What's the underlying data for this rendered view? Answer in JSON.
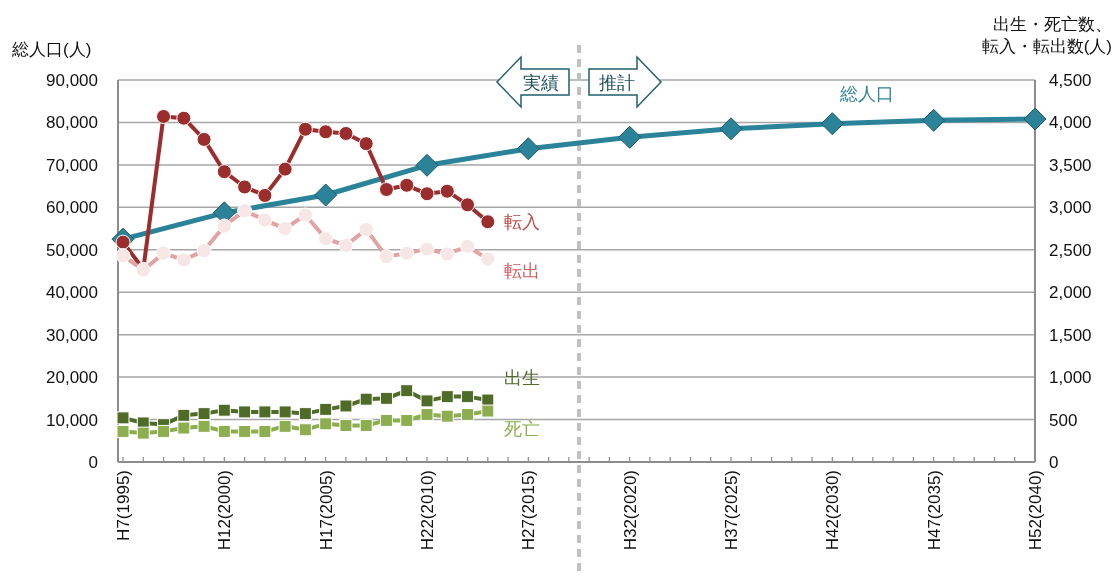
{
  "chart_data": {
    "type": "line",
    "ylabel": "総人口(人)",
    "y2label": "出生・死亡数、転入・転出数(人)",
    "categories": [
      "H7(1995)",
      null,
      null,
      null,
      null,
      "H12(2000)",
      null,
      null,
      null,
      null,
      "H17(2005)",
      null,
      null,
      null,
      null,
      "H22(2010)",
      null,
      null,
      null,
      null,
      "H27(2015)",
      null,
      null,
      null,
      null,
      "H32(2020)",
      null,
      null,
      null,
      null,
      "H37(2025)",
      null,
      null,
      null,
      null,
      "H42(2030)",
      null,
      null,
      null,
      null,
      "H47(2035)",
      null,
      null,
      null,
      null,
      "H52(2040)"
    ],
    "ylim": [
      0,
      90000
    ],
    "yticks": [
      {
        "value": 0,
        "label": "0"
      },
      {
        "value": 10000,
        "label": "10,000"
      },
      {
        "value": 20000,
        "label": "20,000"
      },
      {
        "value": 30000,
        "label": "30,000"
      },
      {
        "value": 40000,
        "label": "40,000"
      },
      {
        "value": 50000,
        "label": "50,000"
      },
      {
        "value": 60000,
        "label": "60,000"
      },
      {
        "value": 70000,
        "label": "70,000"
      },
      {
        "value": 80000,
        "label": "80,000"
      },
      {
        "value": 90000,
        "label": "90,000"
      }
    ],
    "y2lim": [
      0,
      4500
    ],
    "y2ticks": [
      {
        "value": 0,
        "label": "0"
      },
      {
        "value": 500,
        "label": "500"
      },
      {
        "value": 1000,
        "label": "1,000"
      },
      {
        "value": 1500,
        "label": "1,500"
      },
      {
        "value": 2000,
        "label": "2,000"
      },
      {
        "value": 2500,
        "label": "2,500"
      },
      {
        "value": 3000,
        "label": "3,000"
      },
      {
        "value": 3500,
        "label": "3,500"
      },
      {
        "value": 4000,
        "label": "4,000"
      },
      {
        "value": 4500,
        "label": "4,500"
      }
    ],
    "grid": "y",
    "legend": false,
    "series": [
      {
        "name": "総人口",
        "color": "#2b8399",
        "marker": "diamond",
        "x": [
          "H7(1995)",
          "H12(2000)",
          "H17(2005)",
          "H22(2010)",
          "H27(2015)",
          "H32(2020)",
          "H37(2025)",
          "H42(2030)",
          "H47(2035)",
          "H52(2040)"
        ],
        "values": [
          52500,
          58700,
          62900,
          69900,
          73800,
          76500,
          78500,
          79700,
          80500,
          80800
        ]
      },
      {
        "name": "転入",
        "color": "#9b2d2d",
        "marker": "circle",
        "axis": "y2",
        "values": [
          2590,
          2270,
          4070,
          4050,
          3800,
          3420,
          3240,
          3140,
          3450,
          3920,
          3890,
          3870,
          3750,
          3210,
          3260,
          3160,
          3190,
          3030,
          2830,
          null,
          null,
          null,
          null,
          null,
          null,
          null,
          null,
          null,
          null,
          null,
          null,
          null,
          null,
          null,
          null,
          null,
          null,
          null,
          null,
          null,
          null,
          null,
          null,
          null,
          null,
          null
        ]
      },
      {
        "name": "転出",
        "color": "#e3a3a3",
        "marker": "circle",
        "axis": "y2",
        "values": [
          2430,
          2260,
          2460,
          2380,
          2490,
          2780,
          2960,
          2850,
          2750,
          2910,
          2630,
          2550,
          2740,
          2420,
          2460,
          2510,
          2450,
          2540,
          2390,
          null,
          null,
          null,
          null,
          null,
          null,
          null,
          null,
          null,
          null,
          null,
          null,
          null,
          null,
          null,
          null,
          null,
          null,
          null,
          null,
          null,
          null,
          null,
          null,
          null,
          null,
          null
        ]
      },
      {
        "name": "出生",
        "color": "#4f6b28",
        "marker": "square",
        "axis": "y2",
        "values": [
          520,
          460,
          440,
          550,
          570,
          610,
          590,
          590,
          590,
          570,
          620,
          660,
          740,
          750,
          840,
          720,
          770,
          770,
          730,
          null,
          null,
          null,
          null,
          null,
          null,
          null,
          null,
          null,
          null,
          null,
          null,
          null,
          null,
          null,
          null,
          null,
          null,
          null,
          null,
          null,
          null,
          null,
          null,
          null,
          null,
          null
        ]
      },
      {
        "name": "死亡",
        "color": "#8cae4e",
        "marker": "square",
        "axis": "y2",
        "values": [
          360,
          340,
          360,
          400,
          420,
          360,
          360,
          360,
          420,
          380,
          450,
          430,
          430,
          490,
          490,
          560,
          540,
          560,
          600,
          null,
          null,
          null,
          null,
          null,
          null,
          null,
          null,
          null,
          null,
          null,
          null,
          null,
          null,
          null,
          null,
          null,
          null,
          null,
          null,
          null,
          null,
          null,
          null,
          null,
          null,
          null
        ]
      }
    ],
    "annotations": [
      "実績",
      "推計"
    ]
  }
}
